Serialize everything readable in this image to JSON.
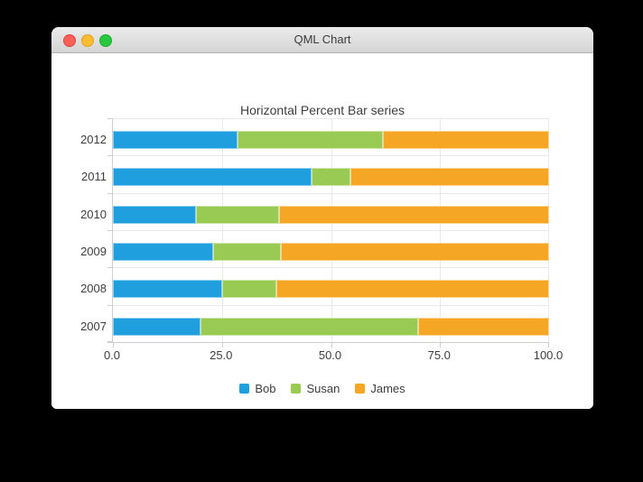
{
  "window": {
    "title": "QML Chart",
    "controls": [
      {
        "name": "close",
        "color": "#ff5f57"
      },
      {
        "name": "minimize",
        "color": "#febc2e"
      },
      {
        "name": "zoom",
        "color": "#28c840"
      }
    ]
  },
  "chart_data": {
    "type": "bar",
    "variant": "percent-stacked",
    "orientation": "horizontal",
    "title": "Horizontal Percent Bar series",
    "categories": [
      "2012",
      "2011",
      "2010",
      "2009",
      "2008",
      "2007"
    ],
    "series": [
      {
        "name": "Bob",
        "color": "#209fdf",
        "values": [
          6,
          5,
          4,
          3,
          2,
          2
        ]
      },
      {
        "name": "Susan",
        "color": "#99ca53",
        "values": [
          7,
          1,
          4,
          2,
          1,
          5
        ]
      },
      {
        "name": "James",
        "color": "#f6a625",
        "values": [
          8,
          5,
          13,
          8,
          5,
          3
        ]
      }
    ],
    "x_axis": {
      "tick_labels": [
        "0.0",
        "25.0",
        "50.0",
        "75.0",
        "100.0"
      ],
      "range": [
        0,
        100
      ],
      "grid": true
    },
    "legend": {
      "position": "bottom",
      "entries": [
        "Bob",
        "Susan",
        "James"
      ]
    }
  },
  "colors": {
    "axis_line": "#cdcdcd",
    "gridline": "#e9e9e9",
    "label_text": "#3d3d3d"
  }
}
